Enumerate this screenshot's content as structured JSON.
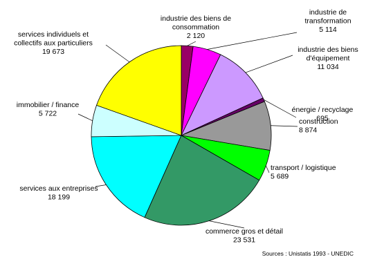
{
  "chart_data": {
    "type": "pie",
    "start_angle_deg": 0,
    "direction": "clockwise",
    "slices": [
      {
        "label": [
          "industrie des biens de",
          "consommation"
        ],
        "value_text": "2 120",
        "value": 2120,
        "color": "#990066"
      },
      {
        "label": [
          "industrie de",
          "transformation"
        ],
        "value_text": "5 114",
        "value": 5114,
        "color": "#ff00ff"
      },
      {
        "label": [
          "industrie des biens",
          "d'équipement"
        ],
        "value_text": "11 034",
        "value": 11034,
        "color": "#cc99ff"
      },
      {
        "label": [
          "énergie / recyclage"
        ],
        "value_text": "695",
        "value": 695,
        "color": "#660066"
      },
      {
        "label": [
          "construction"
        ],
        "value_text": "8 874",
        "value": 8874,
        "color": "#999999"
      },
      {
        "label": [
          "transport / logistique"
        ],
        "value_text": "5 689",
        "value": 5689,
        "color": "#00ff00"
      },
      {
        "label": [
          "commerce gros et détail"
        ],
        "value_text": "23 531",
        "value": 23531,
        "color": "#339966"
      },
      {
        "label": [
          "services aux entreprises"
        ],
        "value_text": "18 199",
        "value": 18199,
        "color": "#00ffff"
      },
      {
        "label": [
          "immobilier / finance"
        ],
        "value_text": "5 722",
        "value": 5722,
        "color": "#ccffff"
      },
      {
        "label": [
          "services individuels et",
          "collectifs aux particuliers"
        ],
        "value_text": "19 673",
        "value": 19673,
        "color": "#ffff00"
      }
    ],
    "source": "Sources : Unistatis 1993 - UNEDIC"
  }
}
